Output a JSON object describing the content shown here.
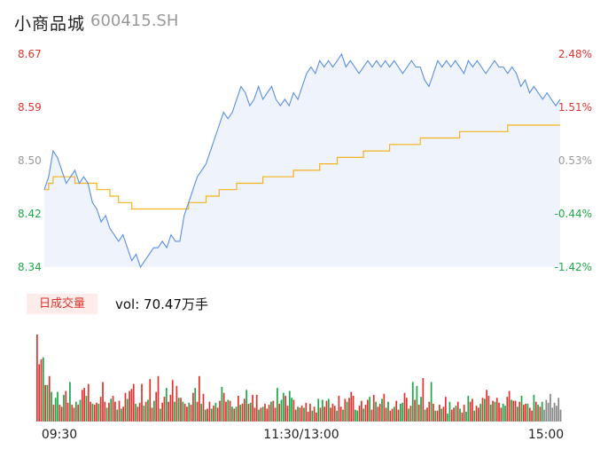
{
  "header": {
    "name": "小商品城",
    "code": "600415.SH"
  },
  "volume_panel": {
    "tab_label": "日成交量",
    "vol_text": "vol: 70.47万手"
  },
  "colors": {
    "price": "#5b8fe6",
    "avg": "#f5b31e",
    "up": "#e0342f",
    "down": "#1ea84a",
    "flat": "#888888"
  },
  "chart_data": [
    {
      "type": "line",
      "title": "",
      "y_left_ticks": [
        "8.67",
        "8.59",
        "8.50",
        "8.42",
        "8.34"
      ],
      "y_right_ticks": [
        "2.48%",
        "1.51%",
        "0.53%",
        "-0.44%",
        "-1.42%"
      ],
      "x_ticks": [
        "09:30",
        "11:30/13:00",
        "15:00"
      ],
      "ylim": [
        8.34,
        8.67
      ],
      "prev_close": 8.46,
      "series": [
        {
          "key": "price",
          "values": [
            8.46,
            8.48,
            8.52,
            8.51,
            8.49,
            8.47,
            8.48,
            8.49,
            8.47,
            8.48,
            8.47,
            8.44,
            8.43,
            8.41,
            8.42,
            8.4,
            8.39,
            8.38,
            8.39,
            8.37,
            8.35,
            8.36,
            8.34,
            8.35,
            8.36,
            8.37,
            8.37,
            8.38,
            8.37,
            8.39,
            8.38,
            8.38,
            8.42,
            8.44,
            8.46,
            8.48,
            8.49,
            8.5,
            8.52,
            8.54,
            8.56,
            8.58,
            8.57,
            8.58,
            8.6,
            8.62,
            8.61,
            8.59,
            8.6,
            8.62,
            8.6,
            8.61,
            8.62,
            8.6,
            8.59,
            8.6,
            8.59,
            8.61,
            8.6,
            8.62,
            8.64,
            8.65,
            8.64,
            8.66,
            8.65,
            8.66,
            8.65,
            8.66,
            8.67,
            8.65,
            8.66,
            8.65,
            8.64,
            8.65,
            8.66,
            8.65,
            8.66,
            8.65,
            8.66,
            8.65,
            8.66,
            8.65,
            8.64,
            8.65,
            8.66,
            8.65,
            8.65,
            8.63,
            8.62,
            8.64,
            8.66,
            8.65,
            8.66,
            8.65,
            8.66,
            8.65,
            8.64,
            8.66,
            8.65,
            8.66,
            8.65,
            8.64,
            8.65,
            8.66,
            8.65,
            8.65,
            8.64,
            8.65,
            8.64,
            8.62,
            8.63,
            8.61,
            8.62,
            8.61,
            8.6,
            8.61,
            8.6,
            8.59,
            8.6
          ]
        },
        {
          "key": "avg",
          "values": [
            8.46,
            8.47,
            8.48,
            8.48,
            8.48,
            8.48,
            8.48,
            8.47,
            8.47,
            8.47,
            8.47,
            8.47,
            8.46,
            8.46,
            8.46,
            8.45,
            8.45,
            8.44,
            8.44,
            8.44,
            8.43,
            8.43,
            8.43,
            8.43,
            8.43,
            8.43,
            8.43,
            8.43,
            8.43,
            8.43,
            8.43,
            8.43,
            8.43,
            8.44,
            8.44,
            8.44,
            8.44,
            8.45,
            8.45,
            8.45,
            8.46,
            8.46,
            8.46,
            8.46,
            8.47,
            8.47,
            8.47,
            8.47,
            8.47,
            8.47,
            8.48,
            8.48,
            8.48,
            8.48,
            8.48,
            8.48,
            8.48,
            8.49,
            8.49,
            8.49,
            8.49,
            8.49,
            8.49,
            8.5,
            8.5,
            8.5,
            8.5,
            8.51,
            8.51,
            8.51,
            8.51,
            8.51,
            8.51,
            8.52,
            8.52,
            8.52,
            8.52,
            8.52,
            8.52,
            8.53,
            8.53,
            8.53,
            8.53,
            8.53,
            8.53,
            8.53,
            8.54,
            8.54,
            8.54,
            8.54,
            8.54,
            8.54,
            8.54,
            8.54,
            8.54,
            8.55,
            8.55,
            8.55,
            8.55,
            8.55,
            8.55,
            8.55,
            8.55,
            8.55,
            8.55,
            8.55,
            8.56,
            8.56,
            8.56,
            8.56,
            8.56,
            8.56,
            8.56,
            8.56,
            8.56,
            8.56,
            8.56,
            8.56,
            8.56
          ]
        }
      ]
    },
    {
      "type": "bar",
      "title": "",
      "values": [
        88,
        58,
        63,
        65,
        37,
        37,
        46,
        30,
        17,
        24,
        30,
        17,
        15,
        27,
        31,
        19,
        40,
        17,
        14,
        20,
        17,
        22,
        32,
        34,
        26,
        38,
        20,
        18,
        17,
        19,
        18,
        25,
        40,
        20,
        14,
        19,
        23,
        26,
        20,
        12,
        21,
        13,
        15,
        29,
        23,
        31,
        33,
        38,
        18,
        15,
        19,
        38,
        16,
        20,
        22,
        43,
        14,
        21,
        30,
        46,
        13,
        19,
        25,
        34,
        20,
        27,
        42,
        20,
        36,
        24,
        24,
        20,
        18,
        15,
        19,
        17,
        29,
        34,
        20,
        46,
        18,
        28,
        12,
        13,
        20,
        13,
        16,
        19,
        14,
        21,
        35,
        29,
        20,
        22,
        21,
        15,
        13,
        15,
        26,
        17,
        18,
        23,
        32,
        18,
        19,
        27,
        14,
        27,
        12,
        14,
        15,
        18,
        13,
        17,
        20,
        21,
        14,
        34,
        18,
        22,
        29,
        26,
        16,
        31,
        24,
        22,
        12,
        15,
        14,
        16,
        14,
        19,
        10,
        18,
        11,
        15,
        9,
        23,
        14,
        22,
        15,
        21,
        23,
        14,
        18,
        16,
        11,
        26,
        15,
        12,
        23,
        20,
        24,
        30,
        26,
        12,
        11,
        16,
        21,
        13,
        17,
        22,
        25,
        12,
        27,
        20,
        15,
        18,
        23,
        28,
        14,
        20,
        11,
        13,
        15,
        21,
        12,
        18,
        19,
        29,
        24,
        13,
        16,
        40,
        22,
        36,
        17,
        25,
        44,
        12,
        14,
        20,
        40,
        18,
        11,
        11,
        17,
        13,
        15,
        25,
        8,
        20,
        12,
        14,
        16,
        20,
        13,
        9,
        17,
        10,
        26,
        20,
        23,
        11,
        16,
        14,
        18,
        24,
        23,
        32,
        26,
        17,
        21,
        20,
        24,
        19,
        14,
        18,
        16,
        25,
        31,
        22,
        21,
        21,
        15,
        20,
        26,
        17,
        18,
        18,
        14,
        11,
        27,
        20,
        17,
        15,
        20,
        12,
        22,
        19,
        28,
        14,
        19,
        16,
        24,
        12
      ],
      "colors": [
        "r",
        "r",
        "r",
        "g",
        "r",
        "g",
        "r",
        "g",
        "r",
        "g",
        "g",
        "r",
        "r",
        "g",
        "r",
        "r",
        "g",
        "r",
        "r",
        "g",
        "r",
        "g",
        "r",
        "r",
        "g",
        "r",
        "r",
        "g",
        "r",
        "r",
        "g",
        "r",
        "r",
        "r",
        "g",
        "r",
        "g",
        "r",
        "r",
        "g",
        "r",
        "g",
        "r",
        "r",
        "g",
        "r",
        "r",
        "r",
        "g",
        "r",
        "r",
        "r",
        "g",
        "r",
        "g",
        "r",
        "r",
        "g",
        "r",
        "r",
        "g",
        "r",
        "r",
        "g",
        "r",
        "r",
        "r",
        "g",
        "r",
        "g",
        "r",
        "g",
        "r",
        "r",
        "g",
        "r",
        "r",
        "g",
        "r",
        "r",
        "g",
        "r",
        "g",
        "r",
        "r",
        "g",
        "r",
        "g",
        "r",
        "r",
        "g",
        "r",
        "r",
        "g",
        "r",
        "g",
        "r",
        "g",
        "r",
        "g",
        "r",
        "r",
        "g",
        "r",
        "g",
        "r",
        "r",
        "r",
        "g",
        "r",
        "g",
        "r",
        "r",
        "r",
        "g",
        "r",
        "r",
        "g",
        "r",
        "g",
        "g",
        "r",
        "r",
        "g",
        "g",
        "r",
        "r",
        "g",
        "r",
        "r",
        "g",
        "r",
        "r",
        "r",
        "g",
        "r",
        "r",
        "g",
        "r",
        "g",
        "r",
        "r",
        "g",
        "r",
        "r",
        "r",
        "g",
        "r",
        "r",
        "g",
        "r",
        "g",
        "r",
        "r",
        "r",
        "g",
        "g",
        "r",
        "r",
        "g",
        "r",
        "r",
        "g",
        "r",
        "r",
        "g",
        "r",
        "r",
        "g",
        "r",
        "r",
        "g",
        "r",
        "r",
        "g",
        "r",
        "r",
        "g",
        "g",
        "r",
        "r",
        "g",
        "r",
        "g",
        "r",
        "g",
        "r",
        "g",
        "r",
        "g",
        "r",
        "r",
        "g",
        "r",
        "g",
        "r",
        "r",
        "g",
        "r",
        "r",
        "g",
        "g",
        "r",
        "r",
        "g",
        "r",
        "g",
        "r",
        "r",
        "g",
        "g",
        "r",
        "r",
        "g",
        "r",
        "r",
        "g",
        "r",
        "g",
        "r",
        "r",
        "g",
        "r",
        "g",
        "r",
        "r",
        "r",
        "g",
        "g",
        "r",
        "r",
        "g",
        "r",
        "r",
        "g",
        "r",
        "g",
        "r",
        "r",
        "g",
        "r",
        "r",
        "g",
        "r",
        "g",
        "r",
        "g",
        "f"
      ]
    }
  ]
}
